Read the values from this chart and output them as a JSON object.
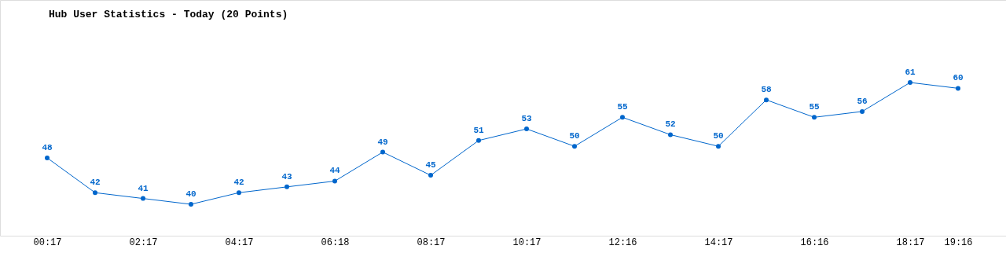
{
  "chart_data": {
    "type": "line",
    "title": "Hub User Statistics - Today (20 Points)",
    "categories": [
      "00:17",
      null,
      "02:17",
      null,
      "04:17",
      null,
      "06:18",
      null,
      "08:17",
      null,
      "10:17",
      null,
      "12:16",
      null,
      "14:17",
      null,
      "16:16",
      null,
      "18:17",
      "19:16"
    ],
    "series": [
      {
        "color": "#0066cc",
        "values": [
          48,
          42,
          41,
          40,
          42,
          43,
          44,
          49,
          45,
          51,
          53,
          50,
          55,
          52,
          50,
          58,
          55,
          56,
          61,
          60
        ]
      }
    ],
    "data_labels": true,
    "marker": "circle",
    "grid": false,
    "tick_labels": "x"
  }
}
